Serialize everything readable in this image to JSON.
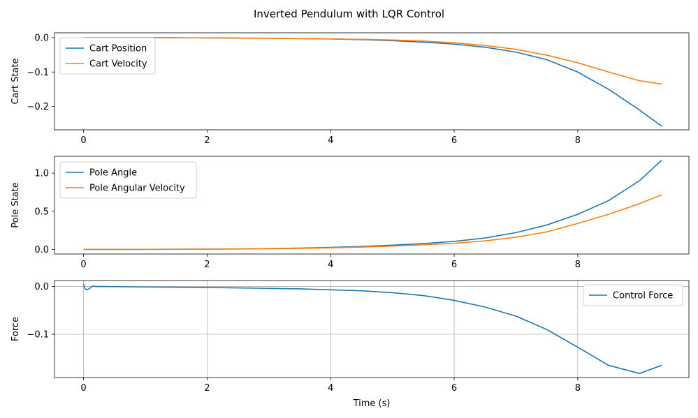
{
  "figure": {
    "title": "Inverted Pendulum with LQR Control"
  },
  "chart_data": [
    {
      "type": "line",
      "xlabel": "",
      "ylabel": "Cart State",
      "xlim": [
        -0.47,
        9.8
      ],
      "ylim": [
        -0.2675,
        0.0139
      ],
      "xticks": [
        0,
        2,
        4,
        6,
        8
      ],
      "yticks": [
        0.0,
        -0.1,
        -0.2
      ],
      "ytick_labels": [
        "0.0",
        "−0.1",
        "−0.2"
      ],
      "grid": false,
      "legend": "upper-left",
      "x": [
        0,
        0.5,
        1,
        1.5,
        2,
        2.5,
        3,
        3.5,
        4,
        4.5,
        5,
        5.5,
        6,
        6.5,
        7,
        7.5,
        8,
        8.5,
        9,
        9.36
      ],
      "series": [
        {
          "name": "Cart Position",
          "color": "#1f77b4",
          "values": [
            0.0,
            0.0,
            0.0,
            -0.0005,
            -0.001,
            -0.0015,
            -0.002,
            -0.003,
            -0.004,
            -0.006,
            -0.009,
            -0.013,
            -0.019,
            -0.028,
            -0.042,
            -0.064,
            -0.1,
            -0.15,
            -0.21,
            -0.257
          ]
        },
        {
          "name": "Cart Velocity",
          "color": "#ff7f0e",
          "values": [
            0.0,
            0.0,
            0.0,
            -0.0005,
            -0.001,
            -0.0015,
            -0.002,
            -0.003,
            -0.004,
            -0.005,
            -0.007,
            -0.01,
            -0.015,
            -0.023,
            -0.034,
            -0.051,
            -0.073,
            -0.1,
            -0.125,
            -0.135
          ]
        }
      ]
    },
    {
      "type": "line",
      "xlabel": "",
      "ylabel": "Pole State",
      "xlim": [
        -0.47,
        9.8
      ],
      "ylim": [
        -0.06,
        1.22
      ],
      "xticks": [
        0,
        2,
        4,
        6,
        8
      ],
      "yticks": [
        0.0,
        0.5,
        1.0
      ],
      "ytick_labels": [
        "0.0",
        "0.5",
        "1.0"
      ],
      "grid": false,
      "legend": "upper-left",
      "x": [
        0,
        0.5,
        1,
        1.5,
        2,
        2.5,
        3,
        3.5,
        4,
        4.5,
        5,
        5.5,
        6,
        6.5,
        7,
        7.5,
        8,
        8.5,
        9,
        9.36
      ],
      "series": [
        {
          "name": "Pole Angle",
          "color": "#1f77b4",
          "values": [
            0.0,
            0.0,
            0.001,
            0.002,
            0.004,
            0.007,
            0.011,
            0.017,
            0.026,
            0.039,
            0.056,
            0.077,
            0.105,
            0.15,
            0.22,
            0.32,
            0.46,
            0.64,
            0.9,
            1.17
          ]
        },
        {
          "name": "Pole Angular Velocity",
          "color": "#ff7f0e",
          "values": [
            0.0,
            0.0,
            0.001,
            0.002,
            0.004,
            0.006,
            0.009,
            0.014,
            0.021,
            0.031,
            0.044,
            0.06,
            0.08,
            0.112,
            0.16,
            0.23,
            0.34,
            0.46,
            0.6,
            0.715
          ]
        }
      ]
    },
    {
      "type": "line",
      "xlabel": "Time (s)",
      "ylabel": "Force",
      "xlim": [
        -0.47,
        9.8
      ],
      "ylim": [
        -0.1905,
        0.0125
      ],
      "xticks": [
        0,
        2,
        4,
        6,
        8
      ],
      "yticks": [
        0.0,
        -0.1
      ],
      "ytick_labels": [
        "0.0",
        "−0.1"
      ],
      "grid": true,
      "legend": "upper-right",
      "x": [
        0,
        0.02,
        0.05,
        0.1,
        0.15,
        0.2,
        0.3,
        1,
        1.5,
        2,
        2.5,
        3,
        3.5,
        4,
        4.5,
        5,
        5.5,
        6,
        6.5,
        7,
        7.5,
        8,
        8.5,
        9,
        9.36
      ],
      "series": [
        {
          "name": "Control Force",
          "color": "#1f77b4",
          "values": [
            0.005,
            -0.004,
            -0.007,
            -0.004,
            0.001,
            0.0,
            0.0,
            -0.001,
            -0.0015,
            -0.002,
            -0.003,
            -0.004,
            -0.005,
            -0.007,
            -0.009,
            -0.013,
            -0.019,
            -0.029,
            -0.043,
            -0.062,
            -0.09,
            -0.127,
            -0.165,
            -0.182,
            -0.165
          ]
        }
      ]
    }
  ]
}
